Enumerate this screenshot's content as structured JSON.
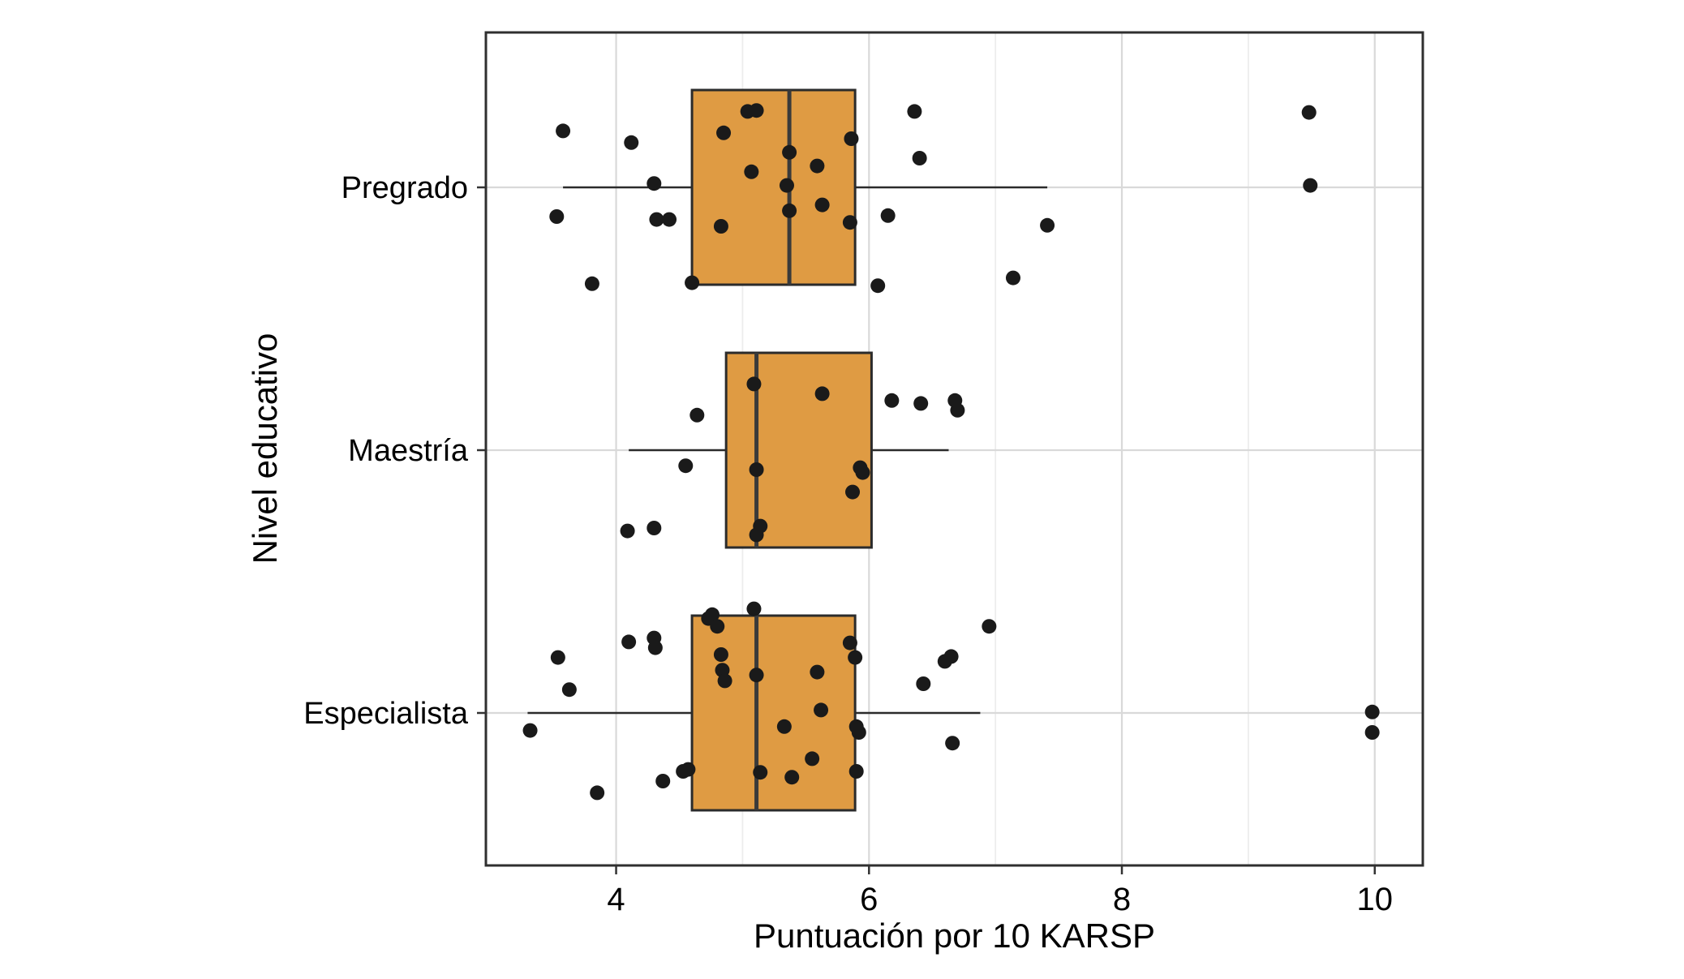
{
  "chart_data": {
    "type": "boxplot",
    "orientation": "horizontal",
    "title": "",
    "xlabel": "Puntuación por 10 KARSP",
    "ylabel": "Nivel educativo",
    "x_ticks": [
      "4",
      "6",
      "8",
      "10"
    ],
    "x_tick_values": [
      4,
      6,
      8,
      10
    ],
    "x_minor_values": [
      5,
      7,
      9
    ],
    "xlim": [
      2.97,
      10.38
    ],
    "grid": true,
    "legend": "none",
    "colors": {
      "box_fill": "#DF9B43",
      "box_stroke": "#2B2B2B",
      "median": "#3A3A3A",
      "whisker": "#2B2B2B",
      "point": "#1A1A1A",
      "grid_major": "#D9D9D9",
      "grid_minor": "#EDEDED",
      "panel_border": "#2F2F2F",
      "tick": "#333333",
      "text": "#000000",
      "background": "#FFFFFF"
    },
    "categories": [
      "Pregrado",
      "Maestría",
      "Especialista"
    ],
    "series": [
      {
        "category": "Pregrado",
        "whisker_low": 3.58,
        "q1": 4.6,
        "median": 5.37,
        "q3": 5.89,
        "whisker_high": 7.41,
        "points": [
          [
            3.53,
            0.3
          ],
          [
            3.58,
            -0.58
          ],
          [
            3.81,
            0.99
          ],
          [
            4.12,
            -0.46
          ],
          [
            4.3,
            -0.04
          ],
          [
            4.32,
            0.33
          ],
          [
            4.42,
            0.33
          ],
          [
            4.6,
            0.98
          ],
          [
            4.83,
            0.4
          ],
          [
            4.85,
            -0.56
          ],
          [
            5.04,
            -0.78
          ],
          [
            5.07,
            -0.16
          ],
          [
            5.11,
            -0.79
          ],
          [
            5.35,
            -0.02
          ],
          [
            5.37,
            -0.36
          ],
          [
            5.37,
            0.24
          ],
          [
            5.59,
            -0.22
          ],
          [
            5.63,
            0.18
          ],
          [
            5.85,
            0.36
          ],
          [
            5.86,
            -0.5
          ],
          [
            6.07,
            1.01
          ],
          [
            6.15,
            0.29
          ],
          [
            6.36,
            -0.78
          ],
          [
            6.4,
            -0.3
          ],
          [
            7.14,
            0.93
          ],
          [
            7.41,
            0.39
          ],
          [
            9.48,
            -0.77
          ],
          [
            9.49,
            -0.02
          ]
        ]
      },
      {
        "category": "Maestría",
        "whisker_low": 4.1,
        "q1": 4.87,
        "median": 5.11,
        "q3": 6.02,
        "whisker_high": 6.63,
        "points": [
          [
            4.09,
            0.83
          ],
          [
            4.3,
            0.8
          ],
          [
            4.55,
            0.16
          ],
          [
            4.64,
            -0.36
          ],
          [
            5.09,
            -0.68
          ],
          [
            5.11,
            0.2
          ],
          [
            5.11,
            0.87
          ],
          [
            5.14,
            0.78
          ],
          [
            5.63,
            -0.58
          ],
          [
            5.87,
            0.43
          ],
          [
            5.93,
            0.18
          ],
          [
            5.95,
            0.23
          ],
          [
            6.18,
            -0.51
          ],
          [
            6.41,
            -0.48
          ],
          [
            6.68,
            -0.51
          ],
          [
            6.7,
            -0.41
          ]
        ]
      },
      {
        "category": "Especialista",
        "whisker_low": 3.3,
        "q1": 4.6,
        "median": 5.11,
        "q3": 5.89,
        "whisker_high": 6.88,
        "points": [
          [
            3.32,
            0.18
          ],
          [
            3.54,
            -0.57
          ],
          [
            3.63,
            -0.24
          ],
          [
            3.85,
            0.82
          ],
          [
            4.1,
            -0.73
          ],
          [
            4.3,
            -0.77
          ],
          [
            4.31,
            -0.67
          ],
          [
            4.37,
            0.7
          ],
          [
            4.53,
            0.6
          ],
          [
            4.57,
            0.58
          ],
          [
            4.73,
            -0.97
          ],
          [
            4.76,
            -1.01
          ],
          [
            4.8,
            -0.89
          ],
          [
            4.83,
            -0.6
          ],
          [
            4.84,
            -0.44
          ],
          [
            4.86,
            -0.33
          ],
          [
            5.09,
            -1.07
          ],
          [
            5.11,
            -0.39
          ],
          [
            5.14,
            0.61
          ],
          [
            5.33,
            0.14
          ],
          [
            5.39,
            0.66
          ],
          [
            5.55,
            0.47
          ],
          [
            5.59,
            -0.42
          ],
          [
            5.62,
            -0.03
          ],
          [
            5.85,
            -0.72
          ],
          [
            5.89,
            -0.57
          ],
          [
            5.9,
            0.14
          ],
          [
            5.9,
            0.6
          ],
          [
            5.92,
            0.2
          ],
          [
            6.43,
            -0.3
          ],
          [
            6.6,
            -0.53
          ],
          [
            6.65,
            -0.58
          ],
          [
            6.66,
            0.31
          ],
          [
            6.95,
            -0.89
          ],
          [
            9.98,
            -0.01
          ],
          [
            9.98,
            0.2
          ]
        ]
      }
    ]
  }
}
